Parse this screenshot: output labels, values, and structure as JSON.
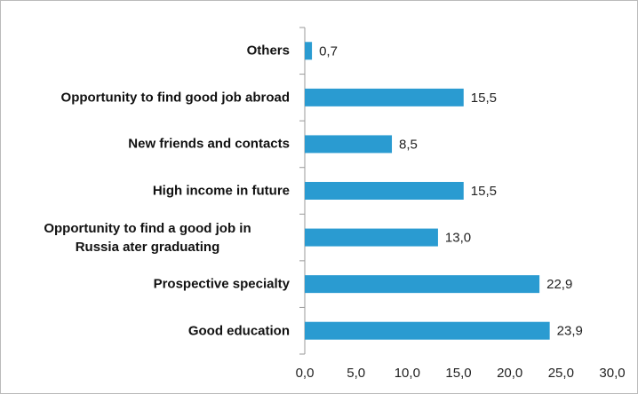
{
  "chart_data": {
    "type": "barh",
    "categories": [
      "Others",
      "Opportunity to find good job abroad",
      "New friends and contacts",
      "High income in future",
      "Opportunity to find a good job in\nRussia ater graduating",
      "Prospective specialty",
      "Good education"
    ],
    "values": [
      0.7,
      15.5,
      8.5,
      15.5,
      13.0,
      22.9,
      23.9
    ],
    "value_labels": [
      "0,7",
      "15,5",
      "8,5",
      "15,5",
      "13,0",
      "22,9",
      "23,9"
    ],
    "color": "#2a9bd1",
    "xlim": [
      0,
      30
    ],
    "xticks": [
      {
        "value": 0,
        "label": "0,0"
      },
      {
        "value": 5,
        "label": "5,0"
      },
      {
        "value": 10,
        "label": "10,0"
      },
      {
        "value": 15,
        "label": "15,0"
      },
      {
        "value": 20,
        "label": "20,0"
      },
      {
        "value": 25,
        "label": "25,0"
      },
      {
        "value": 30,
        "label": "30,0"
      }
    ],
    "grid": false
  }
}
